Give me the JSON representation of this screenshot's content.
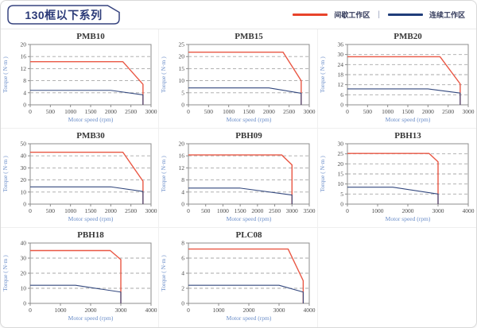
{
  "header": {
    "title": "130框以下系列"
  },
  "legend": {
    "intermittent_label": "间歇工作区",
    "separator": "|",
    "continuous_label": "连续工作区",
    "intermittent_color": "#e8432a",
    "continuous_color": "#1f3d7a"
  },
  "theme": {
    "red": "#e95744",
    "navy": "#33487e",
    "plot_border": "#8c8c8c",
    "grid": "#a8a8a8",
    "tick_color": "#4a4a4a",
    "axis_label_color": "#6b8ec9",
    "title_color": "#383838"
  },
  "chart_data": [
    {
      "type": "line",
      "title": "PMB10",
      "xlabel": "Motor speed (rpm)",
      "ylabel": "Torque ( N·m )",
      "xlim": [
        0,
        3000
      ],
      "xticks": [
        0,
        500,
        1000,
        1500,
        2000,
        2500,
        3000
      ],
      "ylim": [
        0,
        20
      ],
      "yticks": [
        0,
        4,
        8,
        12,
        16,
        20
      ],
      "grid": "horizontal-dashed",
      "legend_position": "none",
      "series": [
        {
          "key": "intermittent",
          "name": "间歇工作区",
          "color": "red",
          "points": [
            [
              0,
              14.3
            ],
            [
              2300,
              14.3
            ],
            [
              2800,
              6.8
            ],
            [
              2800,
              0
            ]
          ]
        },
        {
          "key": "continuous",
          "name": "连续工作区",
          "color": "navy",
          "points": [
            [
              0,
              4.8
            ],
            [
              2000,
              4.8
            ],
            [
              2800,
              3.3
            ],
            [
              2800,
              0
            ]
          ]
        }
      ]
    },
    {
      "type": "line",
      "title": "PMB15",
      "xlabel": "Motor speed (rpm)",
      "ylabel": "Torque ( N·m )",
      "xlim": [
        0,
        3000
      ],
      "xticks": [
        0,
        500,
        1000,
        1500,
        2000,
        2500,
        3000
      ],
      "ylim": [
        0,
        25
      ],
      "yticks": [
        0,
        5,
        10,
        15,
        20,
        25
      ],
      "grid": "horizontal-dashed",
      "legend_position": "none",
      "series": [
        {
          "key": "intermittent",
          "name": "间歇工作区",
          "color": "red",
          "points": [
            [
              0,
              21.8
            ],
            [
              2350,
              21.8
            ],
            [
              2800,
              10
            ],
            [
              2800,
              0
            ]
          ]
        },
        {
          "key": "continuous",
          "name": "连续工作区",
          "color": "navy",
          "points": [
            [
              0,
              7
            ],
            [
              2000,
              7
            ],
            [
              2800,
              4.8
            ],
            [
              2800,
              0
            ]
          ]
        }
      ]
    },
    {
      "type": "line",
      "title": "PMB20",
      "xlabel": "Motor speed (rpm)",
      "ylabel": "Torque ( N·m )",
      "xlim": [
        0,
        3000
      ],
      "xticks": [
        0,
        500,
        1000,
        1500,
        2000,
        2500,
        3000
      ],
      "ylim": [
        0,
        36
      ],
      "yticks": [
        0,
        6,
        12,
        18,
        24,
        30,
        36
      ],
      "grid": "horizontal-dashed",
      "legend_position": "none",
      "series": [
        {
          "key": "intermittent",
          "name": "间歇工作区",
          "color": "red",
          "points": [
            [
              0,
              28.7
            ],
            [
              2300,
              28.7
            ],
            [
              2800,
              12.5
            ],
            [
              2800,
              0
            ]
          ]
        },
        {
          "key": "continuous",
          "name": "连续工作区",
          "color": "navy",
          "points": [
            [
              0,
              9.5
            ],
            [
              2000,
              9.5
            ],
            [
              2800,
              7
            ],
            [
              2800,
              0
            ]
          ]
        }
      ]
    },
    {
      "type": "line",
      "title": "PMB30",
      "xlabel": "Motor speed (rpm)",
      "ylabel": "Torque ( N·m )",
      "xlim": [
        0,
        3000
      ],
      "xticks": [
        0,
        500,
        1000,
        1500,
        2000,
        2500,
        3000
      ],
      "ylim": [
        0,
        50
      ],
      "yticks": [
        0,
        10,
        20,
        30,
        40,
        50
      ],
      "grid": "horizontal-dashed",
      "legend_position": "none",
      "series": [
        {
          "key": "intermittent",
          "name": "间歇工作区",
          "color": "red",
          "points": [
            [
              0,
              43
            ],
            [
              2300,
              43
            ],
            [
              2800,
              19
            ],
            [
              2800,
              0
            ]
          ]
        },
        {
          "key": "continuous",
          "name": "连续工作区",
          "color": "navy",
          "points": [
            [
              0,
              14.3
            ],
            [
              2000,
              14.3
            ],
            [
              2800,
              10.5
            ],
            [
              2800,
              0
            ]
          ]
        }
      ]
    },
    {
      "type": "line",
      "title": "PBH09",
      "xlabel": "Motor speed (rpm)",
      "ylabel": "Torque ( N·m )",
      "xlim": [
        0,
        3500
      ],
      "xticks": [
        0,
        500,
        1000,
        1500,
        2000,
        2500,
        3000,
        3500
      ],
      "ylim": [
        0,
        20
      ],
      "yticks": [
        0,
        4,
        8,
        12,
        16,
        20
      ],
      "grid": "horizontal-dashed",
      "legend_position": "none",
      "series": [
        {
          "key": "intermittent",
          "name": "间歇工作区",
          "color": "red",
          "points": [
            [
              0,
              16.3
            ],
            [
              2700,
              16.3
            ],
            [
              3000,
              13
            ],
            [
              3000,
              0
            ]
          ]
        },
        {
          "key": "continuous",
          "name": "连续工作区",
          "color": "navy",
          "points": [
            [
              0,
              5.3
            ],
            [
              1500,
              5.3
            ],
            [
              3000,
              3
            ],
            [
              3000,
              0
            ]
          ]
        }
      ]
    },
    {
      "type": "line",
      "title": "PBH13",
      "xlabel": "Motor speed (rpm)",
      "ylabel": "Torque ( N·m )",
      "xlim": [
        0,
        4000
      ],
      "xticks": [
        0,
        1000,
        2000,
        3000,
        4000
      ],
      "ylim": [
        0,
        30
      ],
      "yticks": [
        0,
        5,
        10,
        15,
        20,
        25,
        30
      ],
      "grid": "horizontal-dashed",
      "legend_position": "none",
      "series": [
        {
          "key": "intermittent",
          "name": "间歇工作区",
          "color": "red",
          "points": [
            [
              0,
              25.2
            ],
            [
              2700,
              25.2
            ],
            [
              3000,
              21
            ],
            [
              3000,
              0
            ]
          ]
        },
        {
          "key": "continuous",
          "name": "连续工作区",
          "color": "navy",
          "points": [
            [
              0,
              8.4
            ],
            [
              1500,
              8.4
            ],
            [
              3000,
              5
            ],
            [
              3000,
              0
            ]
          ]
        }
      ]
    },
    {
      "type": "line",
      "title": "PBH18",
      "xlabel": "Motor speed (rpm)",
      "ylabel": "Torque ( N·m )",
      "xlim": [
        0,
        4000
      ],
      "xticks": [
        0,
        1000,
        2000,
        3000,
        4000
      ],
      "ylim": [
        0,
        40
      ],
      "yticks": [
        0,
        10,
        20,
        30,
        40
      ],
      "grid": "horizontal-dashed",
      "legend_position": "none",
      "series": [
        {
          "key": "intermittent",
          "name": "间歇工作区",
          "color": "red",
          "points": [
            [
              0,
              35
            ],
            [
              2650,
              35
            ],
            [
              3000,
              29
            ],
            [
              3000,
              0
            ]
          ]
        },
        {
          "key": "continuous",
          "name": "连续工作区",
          "color": "navy",
          "points": [
            [
              0,
              12
            ],
            [
              1500,
              12
            ],
            [
              3000,
              7.5
            ],
            [
              3000,
              0
            ]
          ]
        }
      ]
    },
    {
      "type": "line",
      "title": "PLC08",
      "xlabel": "Motor speed (rpm)",
      "ylabel": "Torque ( N·m )",
      "xlim": [
        0,
        4000
      ],
      "xticks": [
        0,
        1000,
        2000,
        3000,
        4000
      ],
      "ylim": [
        0,
        8
      ],
      "yticks": [
        0,
        2,
        4,
        6,
        8
      ],
      "grid": "horizontal-dashed",
      "legend_position": "none",
      "series": [
        {
          "key": "intermittent",
          "name": "间歇工作区",
          "color": "red",
          "points": [
            [
              0,
              7.2
            ],
            [
              3300,
              7.2
            ],
            [
              3800,
              3
            ],
            [
              3800,
              0
            ]
          ]
        },
        {
          "key": "continuous",
          "name": "连续工作区",
          "color": "navy",
          "points": [
            [
              0,
              2.4
            ],
            [
              3000,
              2.4
            ],
            [
              3800,
              1.5
            ],
            [
              3800,
              0
            ]
          ]
        }
      ]
    }
  ]
}
